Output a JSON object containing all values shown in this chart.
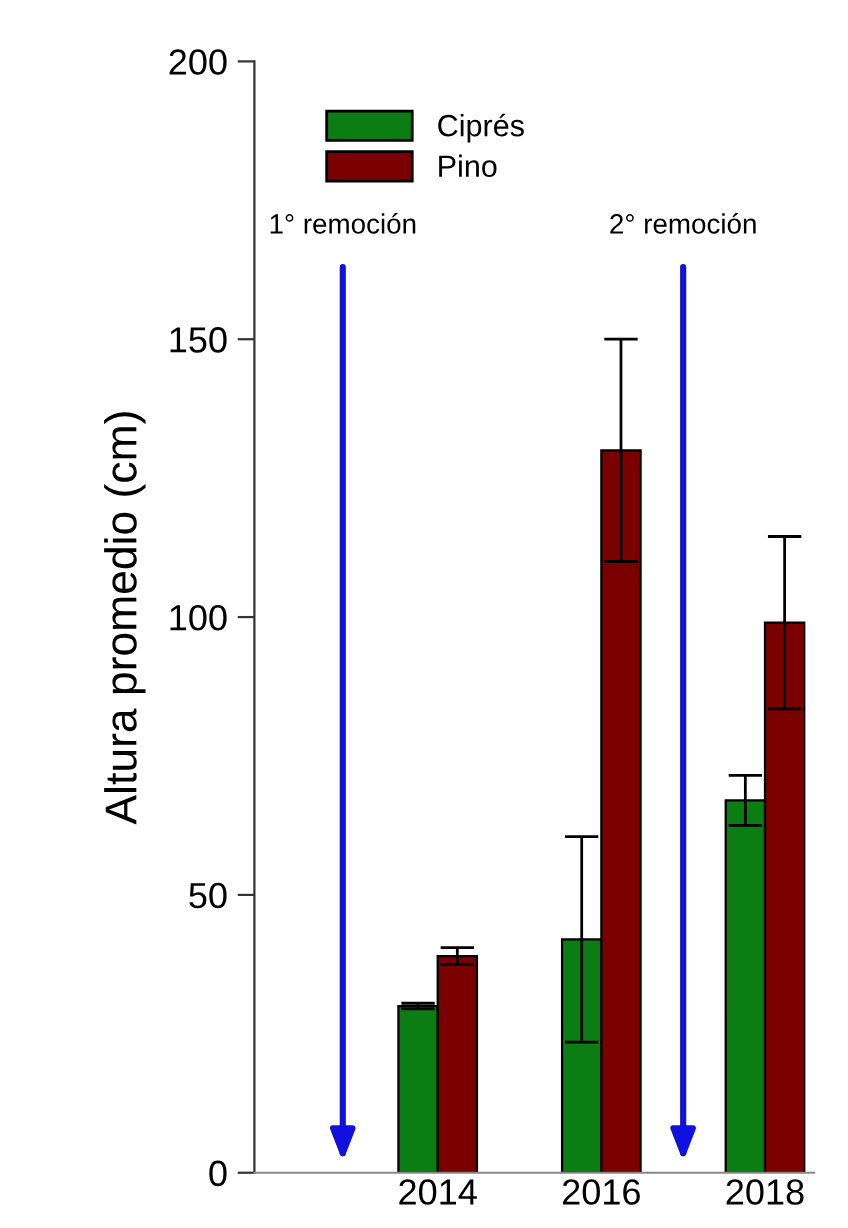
{
  "chart_data": {
    "type": "bar",
    "ylabel": "Altura promedio (cm)",
    "categories": [
      "2014",
      "2016",
      "2018"
    ],
    "series": [
      {
        "name": "Ciprés",
        "color": "#0b7d12",
        "values": [
          30,
          42,
          67
        ],
        "errors": [
          0.5,
          18.5,
          4.5
        ]
      },
      {
        "name": "Pino",
        "color": "#7b0000",
        "values": [
          39,
          130,
          99
        ],
        "errors": [
          1.5,
          20,
          15.5
        ]
      }
    ],
    "ylim": [
      0,
      200
    ],
    "yticks": [
      0,
      50,
      100,
      150,
      200
    ],
    "grid": false,
    "legend": "top left",
    "annotations": [
      "1° remoción",
      "2° remoción"
    ]
  }
}
